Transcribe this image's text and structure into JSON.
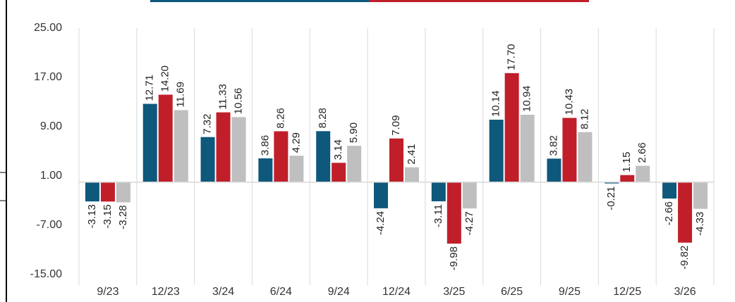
{
  "chart_data": {
    "type": "bar",
    "categories": [
      "9/23",
      "12/23",
      "3/24",
      "6/24",
      "9/24",
      "12/24",
      "3/25",
      "6/25",
      "9/25",
      "12/25",
      "3/26"
    ],
    "series": [
      {
        "color": "#0e587c",
        "values": [
          -3.13,
          12.71,
          7.32,
          3.86,
          8.28,
          -4.24,
          -3.11,
          10.14,
          3.82,
          -0.21,
          -2.66
        ],
        "value_labels": [
          "-3.13",
          "12.71",
          "7.32",
          "3.86",
          "8.28",
          "-4.24",
          "-3.11",
          "10.14",
          "3.82",
          "-0.21",
          "-2.66"
        ]
      },
      {
        "color": "#c01f2a",
        "values": [
          -3.15,
          14.2,
          11.33,
          8.26,
          3.14,
          7.09,
          -9.98,
          17.7,
          10.43,
          1.15,
          -9.82
        ],
        "value_labels": [
          "-3.15",
          "14.20",
          "11.33",
          "8.26",
          "3.14",
          "7.09",
          "-9.98",
          "17.70",
          "10.43",
          "1.15",
          "-9.82"
        ]
      },
      {
        "color": "#bfbfbf",
        "values": [
          -3.28,
          11.69,
          10.56,
          4.29,
          5.9,
          2.41,
          -4.27,
          10.94,
          8.12,
          2.66,
          -4.33
        ],
        "value_labels": [
          "-3.28",
          "11.69",
          "10.56",
          "4.29",
          "5.90",
          "2.41",
          "-4.27",
          "10.94",
          "8.12",
          "2.66",
          "-4.33"
        ]
      }
    ],
    "ylim": [
      -15,
      25
    ],
    "yticks": [
      {
        "value": -15,
        "label": "-15.00"
      },
      {
        "value": -7,
        "label": "-7.00"
      },
      {
        "value": 1,
        "label": "1.00"
      },
      {
        "value": 9,
        "label": "9.00"
      },
      {
        "value": 17,
        "label": "17.00"
      },
      {
        "value": 25,
        "label": "25.00"
      }
    ],
    "grid": true
  }
}
